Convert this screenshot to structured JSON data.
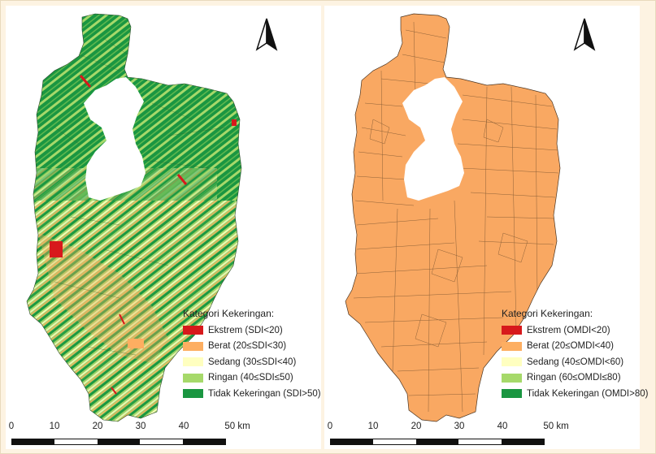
{
  "panels": [
    {
      "id": "sdi",
      "legend": {
        "title": "Kategori Kekeringan:",
        "items": [
          {
            "label": "Ekstrem (SDI<20)",
            "color": "#d7191c"
          },
          {
            "label": "Berat (20≤SDI<30)",
            "color": "#fdae61"
          },
          {
            "label": "Sedang (30≤SDI<40)",
            "color": "#ffffc0"
          },
          {
            "label": "Ringan (40≤SDI≤50)",
            "color": "#a6d96a"
          },
          {
            "label": "Tidak Kekeringan (SDI>50)",
            "color": "#1a9641"
          }
        ]
      },
      "scale": {
        "ticks": [
          "0",
          "10",
          "20",
          "30",
          "40",
          "50 km"
        ]
      }
    },
    {
      "id": "omdi",
      "legend": {
        "title": "Kategori Kekeringan:",
        "items": [
          {
            "label": "Ekstrem (OMDI<20)",
            "color": "#d7191c"
          },
          {
            "label": "Berat (20≤OMDI<40)",
            "color": "#fdae61"
          },
          {
            "label": "Sedang (40≤OMDI<60)",
            "color": "#ffffc0"
          },
          {
            "label": "Ringan (60≤OMDI≤80)",
            "color": "#a6d96a"
          },
          {
            "label": "Tidak Kekeringan (OMDI>80)",
            "color": "#1a9641"
          }
        ]
      },
      "scale": {
        "ticks": [
          "0",
          "10",
          "20",
          "30",
          "40",
          "50 km"
        ]
      }
    }
  ]
}
